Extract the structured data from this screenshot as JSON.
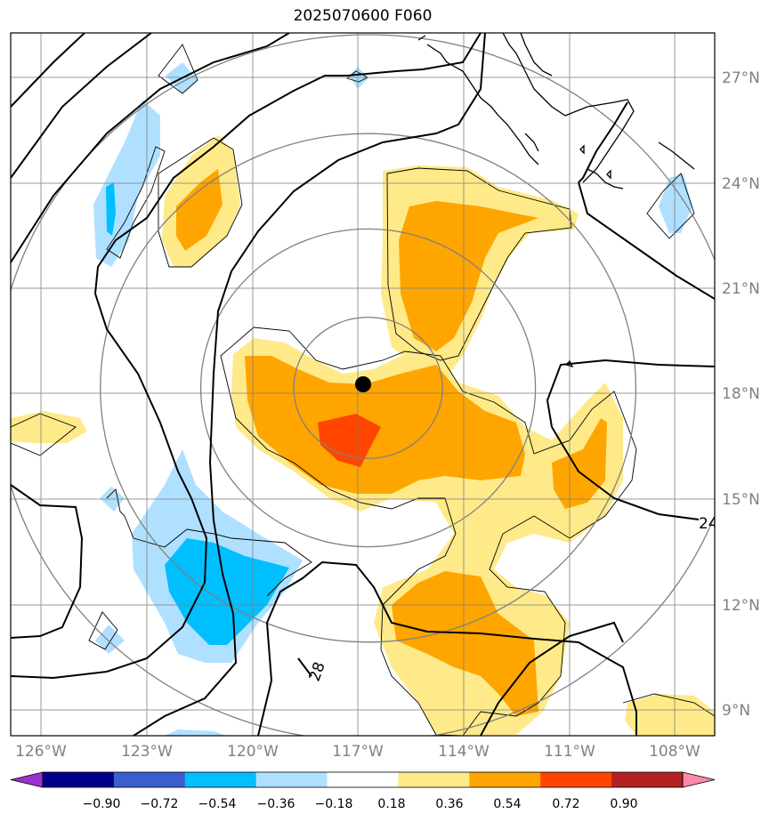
{
  "title": "2025070600 F060",
  "map": {
    "lon_range": [
      -126.8,
      -107.3
    ],
    "lat_range": [
      8.3,
      28.2
    ],
    "center": {
      "lon": -116.9,
      "lat": 18.25
    },
    "lat_ticks": [
      {
        "value": 9,
        "label": "9°N"
      },
      {
        "value": 12,
        "label": "12°N"
      },
      {
        "value": 15,
        "label": "15°N"
      },
      {
        "value": 18,
        "label": "18°N"
      },
      {
        "value": 21,
        "label": "21°N"
      },
      {
        "value": 24,
        "label": "24°N"
      },
      {
        "value": 27,
        "label": "27°N"
      }
    ],
    "lon_ticks": [
      {
        "value": -126,
        "label": "126°W"
      },
      {
        "value": -123,
        "label": "123°W"
      },
      {
        "value": -120,
        "label": "120°W"
      },
      {
        "value": -117,
        "label": "117°W"
      },
      {
        "value": -114,
        "label": "114°W"
      },
      {
        "value": -111,
        "label": "111°W"
      },
      {
        "value": -108,
        "label": "108°W"
      }
    ],
    "contour_labels": [
      "24",
      "28"
    ],
    "range_ring_radii_deg": [
      2,
      4.5,
      7.2,
      10
    ]
  },
  "colorbar": {
    "colors": [
      "#9932cc",
      "#00008b",
      "#3a5fcd",
      "#00bfff",
      "#b0e0ff",
      "#ffffff",
      "#ffea8a",
      "#ffa500",
      "#ff4500",
      "#b22222",
      "#ff88aa"
    ],
    "tick_labels": [
      "−0.90",
      "−0.72",
      "−0.54",
      "−0.36",
      "−0.18",
      "0.18",
      "0.36",
      "0.54",
      "0.72",
      "0.90"
    ]
  },
  "colors": {
    "light_orange": "#ffea8a",
    "orange": "#ffa500",
    "red_orange": "#ff4500",
    "light_blue": "#b0e0ff",
    "blue": "#00bfff",
    "grid": "#808080"
  }
}
